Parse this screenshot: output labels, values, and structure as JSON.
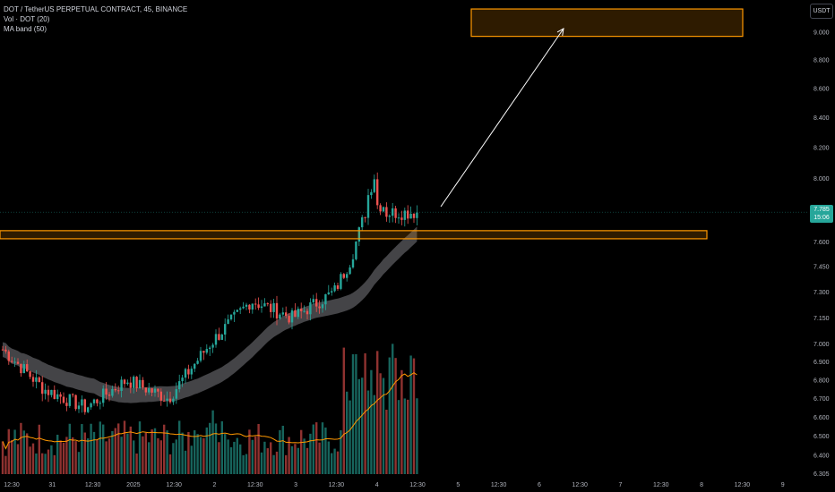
{
  "legend": {
    "symbol": "DOT / TetherUS PERPETUAL CONTRACT, 45, BINANCE",
    "volume": "Vol · DOT (20)",
    "ma_band": "MA band (50)"
  },
  "currency_button": "USDT",
  "last_price": {
    "value": "7.785",
    "countdown": "15:06",
    "color": "#26a69a"
  },
  "colors": {
    "up": "#26a69a",
    "down": "#ef5350",
    "box": "#ff9800",
    "band": "#4b4b4f",
    "vol_ma": "#ff9800",
    "arrow": "#ffffff"
  },
  "price_axis": {
    "ticks": [
      "9.000",
      "8.800",
      "8.600",
      "8.400",
      "8.200",
      "8.000",
      "7.600",
      "7.450",
      "7.300",
      "7.150",
      "7.000",
      "6.900",
      "6.800",
      "6.700",
      "6.600",
      "6.500",
      "6.400",
      "6.305"
    ],
    "values": [
      9.0,
      8.8,
      8.6,
      8.4,
      8.2,
      8.0,
      7.6,
      7.45,
      7.3,
      7.15,
      7.0,
      6.9,
      6.8,
      6.7,
      6.6,
      6.5,
      6.4,
      6.305
    ]
  },
  "time_axis": {
    "labels": [
      "12:30",
      "31",
      "12:30",
      "2025",
      "12:30",
      "2",
      "12:30",
      "3",
      "12:30",
      "4",
      "12:30",
      "5",
      "12:30",
      "6",
      "12:30",
      "7",
      "12:30",
      "8",
      "12:30",
      "9"
    ]
  },
  "annotations": {
    "support_zone": {
      "price_top": 7.67,
      "price_bottom": 7.62
    },
    "target_zone": {
      "price_top": 9.17,
      "price_bottom": 8.97
    },
    "arrow": {
      "from_price": 7.82,
      "to_price": 9.0
    }
  },
  "chart_data": {
    "type": "candlestick",
    "symbol": "DOT / TetherUS PERPETUAL CONTRACT",
    "interval": "45",
    "exchange": "BINANCE",
    "ylim": [
      6.3,
      9.2
    ],
    "scale": "log",
    "trend": [
      {
        "label": "12:30 (Dec 30)",
        "close": 6.97
      },
      {
        "label": "31",
        "close": 6.75
      },
      {
        "label": "12:30",
        "close": 6.65
      },
      {
        "label": "2025",
        "close": 6.8
      },
      {
        "label": "12:30",
        "close": 6.7
      },
      {
        "label": "2",
        "close": 7.0
      },
      {
        "label": "12:30",
        "close": 7.25
      },
      {
        "label": "3",
        "close": 7.15
      },
      {
        "label": "12:30",
        "close": 7.3
      },
      {
        "label": "4",
        "close": 7.78
      },
      {
        "label": "12:30",
        "close": 7.785
      }
    ],
    "last_price": 7.785,
    "volume_series": "Vol · DOT (20)",
    "overlay_series": "MA band (50)"
  }
}
